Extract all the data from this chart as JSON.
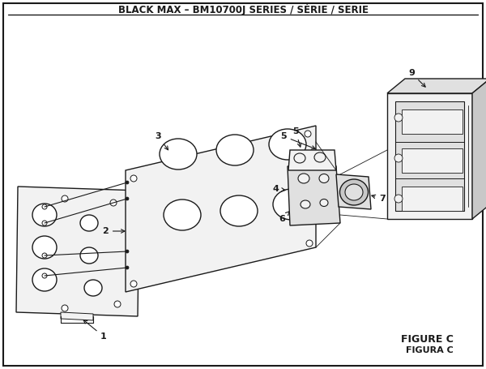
{
  "title": "BLACK MAX – BM10700J SERIES / SÉRIE / SERIE",
  "title_fontsize": 8.5,
  "figure_label1": "FIGURE C",
  "figure_label2": "FIGURA C",
  "bg_color": "#ffffff",
  "border_color": "#1a1a1a",
  "line_color": "#1a1a1a",
  "fill_light": "#f2f2f2",
  "fill_mid": "#e0e0e0",
  "fill_dark": "#c8c8c8"
}
